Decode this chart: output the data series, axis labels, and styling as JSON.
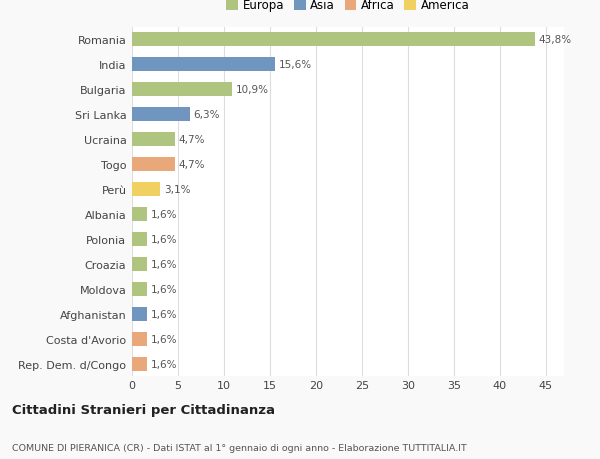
{
  "categories": [
    "Romania",
    "India",
    "Bulgaria",
    "Sri Lanka",
    "Ucraina",
    "Togo",
    "Perù",
    "Albania",
    "Polonia",
    "Croazia",
    "Moldova",
    "Afghanistan",
    "Costa d'Avorio",
    "Rep. Dem. d/Congo"
  ],
  "values": [
    43.8,
    15.6,
    10.9,
    6.3,
    4.7,
    4.7,
    3.1,
    1.6,
    1.6,
    1.6,
    1.6,
    1.6,
    1.6,
    1.6
  ],
  "labels": [
    "43,8%",
    "15,6%",
    "10,9%",
    "6,3%",
    "4,7%",
    "4,7%",
    "3,1%",
    "1,6%",
    "1,6%",
    "1,6%",
    "1,6%",
    "1,6%",
    "1,6%",
    "1,6%"
  ],
  "continents": [
    "Europa",
    "Asia",
    "Europa",
    "Asia",
    "Europa",
    "Africa",
    "America",
    "Europa",
    "Europa",
    "Europa",
    "Europa",
    "Asia",
    "Africa",
    "Africa"
  ],
  "colors": {
    "Europa": "#afc47e",
    "Asia": "#7096c0",
    "Africa": "#e8a87a",
    "America": "#f0d060"
  },
  "legend_labels": [
    "Europa",
    "Asia",
    "Africa",
    "America"
  ],
  "legend_colors": [
    "#afc47e",
    "#7096c0",
    "#e8a87a",
    "#f0d060"
  ],
  "title": "Cittadini Stranieri per Cittadinanza",
  "subtitle": "COMUNE DI PIERANICA (CR) - Dati ISTAT al 1° gennaio di ogni anno - Elaborazione TUTTITALIA.IT",
  "xlim": [
    0,
    47
  ],
  "xticks": [
    0,
    5,
    10,
    15,
    20,
    25,
    30,
    35,
    40,
    45
  ],
  "background_color": "#f9f9f9",
  "bar_background": "#ffffff",
  "grid_color": "#dddddd"
}
